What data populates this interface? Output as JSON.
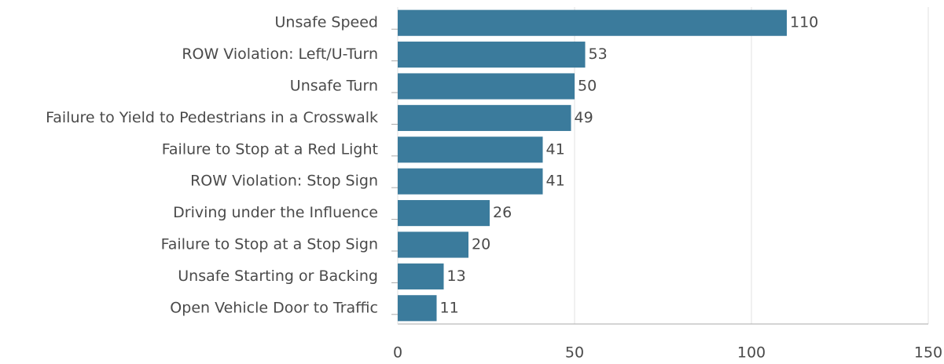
{
  "chart_data": {
    "type": "bar",
    "orientation": "horizontal",
    "categories": [
      "Unsafe Speed",
      "ROW Violation: Left/U-Turn",
      "Unsafe Turn",
      "Failure to Yield to Pedestrians in a Crosswalk",
      "Failure to Stop at a Red Light",
      "ROW Violation: Stop Sign",
      "Driving under the Influence",
      "Failure to Stop at a Stop Sign",
      "Unsafe Starting or Backing",
      "Open Vehicle Door to Traffic"
    ],
    "values": [
      110,
      53,
      50,
      49,
      41,
      41,
      26,
      20,
      13,
      11
    ],
    "color": "#3b7b9c",
    "xlim": [
      0,
      150
    ],
    "xticks": [
      0,
      50,
      100,
      150
    ],
    "grid": true
  }
}
